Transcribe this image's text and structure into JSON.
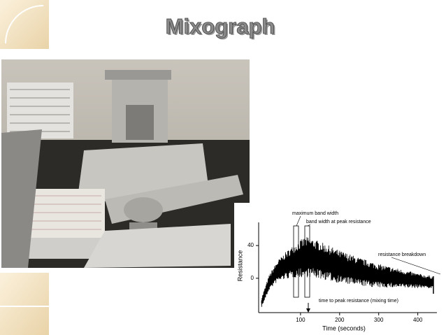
{
  "title": "Mixograph",
  "chart_data": {
    "type": "line",
    "x_label": "Time (seconds)",
    "y_label": "Resistance",
    "annotations": [
      "maximum band width",
      "band width at peak resistance",
      "resistance breakdown",
      "time to peak resistance (mixing time)"
    ],
    "x": [
      0,
      20,
      40,
      60,
      80,
      100,
      120,
      150,
      200,
      250,
      300,
      350,
      400,
      440
    ],
    "values": [
      -30,
      -5,
      8,
      15,
      20,
      24,
      26,
      22,
      14,
      8,
      3,
      0,
      -3,
      -5
    ],
    "color": "#000000",
    "xlim": [
      0,
      440
    ],
    "ylim": [
      -42,
      70
    ],
    "xticks": [
      100,
      200,
      300,
      400
    ],
    "yticks": [
      0,
      40
    ]
  }
}
